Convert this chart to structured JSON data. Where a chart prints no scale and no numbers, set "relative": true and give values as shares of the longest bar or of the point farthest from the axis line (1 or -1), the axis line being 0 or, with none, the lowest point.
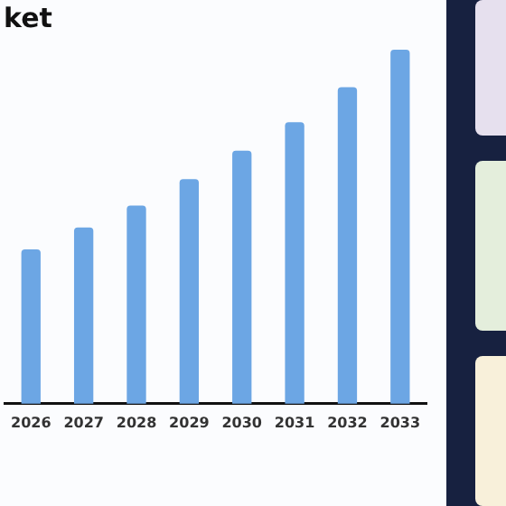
{
  "chart_data": {
    "type": "bar",
    "title": "ket",
    "relative": true,
    "categories": [
      "2026",
      "2027",
      "2028",
      "2029",
      "2030",
      "2031",
      "2032",
      "2033"
    ],
    "values": [
      0.435,
      0.497,
      0.559,
      0.634,
      0.714,
      0.795,
      0.894,
      1
    ],
    "color": "#6ca6e4",
    "grid": false,
    "legend": false
  }
}
